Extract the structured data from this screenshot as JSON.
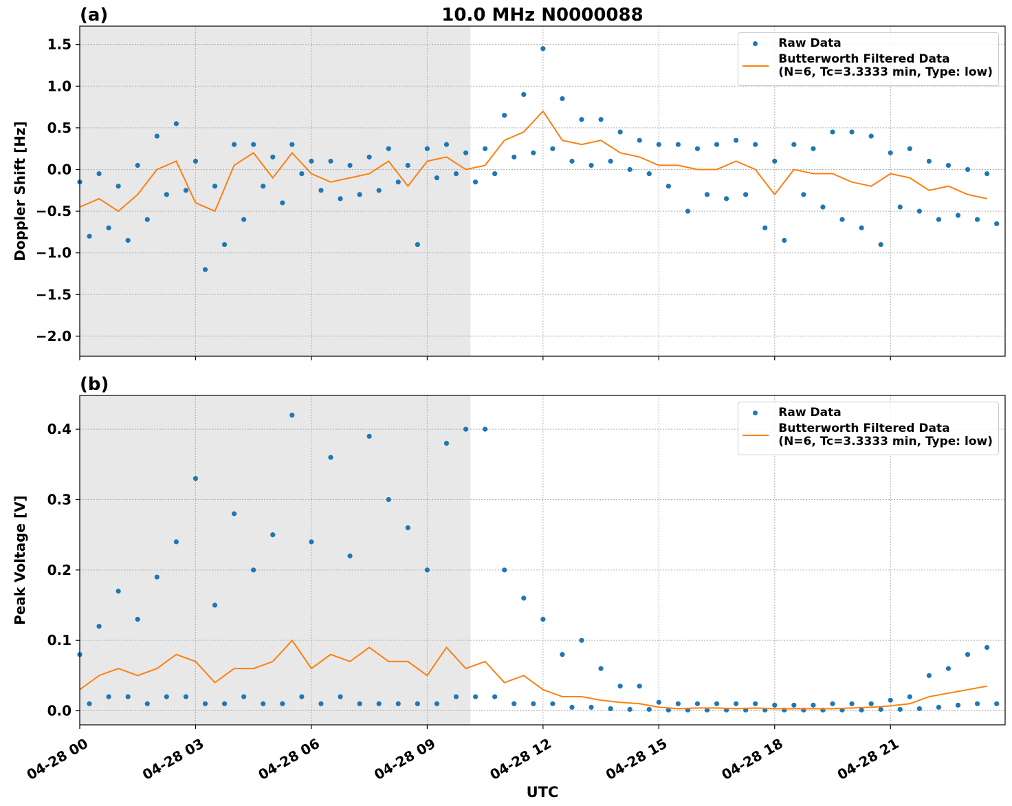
{
  "chart_data": [
    {
      "type": "line",
      "title": "10.0 MHz N0000088",
      "panel_label": "(a)",
      "ylabel": "Doppler Shift [Hz]",
      "xlim": [
        0,
        23.97
      ],
      "ylim": [
        -2.24,
        1.72
      ],
      "grid": true,
      "legend": "upper right",
      "shade_xspan": [
        0,
        10.12
      ],
      "shade_color": "#e8e8e8",
      "xticks": [
        0,
        3,
        6,
        9,
        12,
        15,
        18,
        21
      ],
      "show_xtick_labels": false,
      "yticks": [
        {
          "value": -2.0,
          "label": "−2.0"
        },
        {
          "value": -1.5,
          "label": "−1.5"
        },
        {
          "value": -1.0,
          "label": "−1.0"
        },
        {
          "value": -0.5,
          "label": "−0.5"
        },
        {
          "value": 0,
          "label": "0.0"
        },
        0.5,
        {
          "value": 1.0,
          "label": "1.0"
        },
        1.5
      ],
      "series": [
        {
          "name": "Raw Data",
          "marker": "dot",
          "color": "#1f77b4",
          "x": [
            0,
            0.25,
            0.5,
            0.75,
            1,
            1.25,
            1.5,
            1.75,
            2,
            2.25,
            2.5,
            2.75,
            3,
            3.25,
            3.5,
            3.75,
            4,
            4.25,
            4.5,
            4.75,
            5,
            5.25,
            5.5,
            5.75,
            6,
            6.25,
            6.5,
            6.75,
            7,
            7.25,
            7.5,
            7.75,
            8,
            8.25,
            8.5,
            8.75,
            9,
            9.25,
            9.5,
            9.75,
            10,
            10.25,
            10.5,
            10.75,
            11,
            11.25,
            11.5,
            11.75,
            12,
            12.25,
            12.5,
            12.75,
            13,
            13.25,
            13.5,
            13.75,
            14,
            14.25,
            14.5,
            14.75,
            15,
            15.25,
            15.5,
            15.75,
            16,
            16.25,
            16.5,
            16.75,
            17,
            17.25,
            17.5,
            17.75,
            18,
            18.25,
            18.5,
            18.75,
            19,
            19.25,
            19.5,
            19.75,
            20,
            20.25,
            20.5,
            20.75,
            21,
            21.25,
            21.5,
            21.75,
            22,
            22.25,
            22.5,
            22.75,
            23,
            23.25,
            23.5,
            23.75
          ],
          "values": [
            -0.15,
            -0.8,
            -0.05,
            -0.7,
            -0.2,
            -0.85,
            0.05,
            -0.6,
            0.4,
            -0.3,
            0.55,
            -0.25,
            0.1,
            -1.2,
            -0.2,
            -0.9,
            0.3,
            -0.6,
            0.3,
            -0.2,
            0.15,
            -0.4,
            0.3,
            -0.05,
            0.1,
            -0.25,
            0.1,
            -0.35,
            0.05,
            -0.3,
            0.15,
            -0.25,
            0.25,
            -0.15,
            0.05,
            -0.9,
            0.25,
            -0.1,
            0.3,
            -0.05,
            0.2,
            -0.15,
            0.25,
            -0.05,
            0.65,
            0.15,
            0.9,
            0.2,
            1.45,
            0.25,
            0.85,
            0.1,
            0.6,
            0.05,
            0.6,
            0.1,
            0.45,
            0.0,
            0.35,
            -0.05,
            0.3,
            -0.2,
            0.3,
            -0.5,
            0.25,
            -0.3,
            0.3,
            -0.35,
            0.35,
            -0.3,
            0.3,
            -0.7,
            0.1,
            -0.85,
            0.3,
            -0.3,
            0.25,
            -0.45,
            0.45,
            -0.6,
            0.45,
            -0.7,
            0.4,
            -0.9,
            0.2,
            -0.45,
            0.25,
            -0.5,
            0.1,
            -0.6,
            0.05,
            -0.55,
            0.0,
            -0.6,
            -0.05,
            -0.65
          ]
        },
        {
          "name": "Butterworth Filtered Data\n(N=6, Tc=3.3333 min, Type: low)",
          "marker": "line",
          "color": "#ff7f0e",
          "x": [
            0,
            0.5,
            1,
            1.5,
            2,
            2.5,
            3,
            3.5,
            4,
            4.5,
            5,
            5.5,
            6,
            6.5,
            7,
            7.5,
            8,
            8.5,
            9,
            9.5,
            10,
            10.5,
            11,
            11.5,
            12,
            12.5,
            13,
            13.5,
            14,
            14.5,
            15,
            15.5,
            16,
            16.5,
            17,
            17.5,
            18,
            18.5,
            19,
            19.5,
            20,
            20.5,
            21,
            21.5,
            22,
            22.5,
            23,
            23.5
          ],
          "values": [
            -0.45,
            -0.35,
            -0.5,
            -0.3,
            0.0,
            0.1,
            -0.4,
            -0.5,
            0.05,
            0.2,
            -0.1,
            0.2,
            -0.05,
            -0.15,
            -0.1,
            -0.05,
            0.1,
            -0.2,
            0.1,
            0.15,
            0.0,
            0.05,
            0.35,
            0.45,
            0.7,
            0.35,
            0.3,
            0.35,
            0.2,
            0.15,
            0.05,
            0.05,
            0.0,
            0.0,
            0.1,
            0.0,
            -0.3,
            0.0,
            -0.05,
            -0.05,
            -0.15,
            -0.2,
            -0.05,
            -0.1,
            -0.25,
            -0.2,
            -0.3,
            -0.35
          ]
        }
      ]
    },
    {
      "type": "line",
      "panel_label": "(b)",
      "ylabel": "Peak Voltage [V]",
      "xlabel": "UTC",
      "xlim": [
        0,
        23.97
      ],
      "ylim": [
        -0.02,
        0.448
      ],
      "grid": true,
      "legend": "upper right",
      "shade_xspan": [
        0,
        10.12
      ],
      "shade_color": "#e8e8e8",
      "xticks": [
        {
          "value": 0,
          "label": "04-28 00"
        },
        {
          "value": 3,
          "label": "04-28 03"
        },
        {
          "value": 6,
          "label": "04-28 06"
        },
        {
          "value": 9,
          "label": "04-28 09"
        },
        {
          "value": 12,
          "label": "04-28 12"
        },
        {
          "value": 15,
          "label": "04-28 15"
        },
        {
          "value": 18,
          "label": "04-28 18"
        },
        {
          "value": 21,
          "label": "04-28 21"
        }
      ],
      "show_xtick_labels": true,
      "yticks": [
        {
          "value": 0,
          "label": "0.0"
        },
        0.1,
        0.2,
        0.3,
        0.4
      ],
      "series": [
        {
          "name": "Raw Data",
          "marker": "dot",
          "color": "#1f77b4",
          "x": [
            0,
            0.25,
            0.5,
            0.75,
            1,
            1.25,
            1.5,
            1.75,
            2,
            2.25,
            2.5,
            2.75,
            3,
            3.25,
            3.5,
            3.75,
            4,
            4.25,
            4.5,
            4.75,
            5,
            5.25,
            5.5,
            5.75,
            6,
            6.25,
            6.5,
            6.75,
            7,
            7.25,
            7.5,
            7.75,
            8,
            8.25,
            8.5,
            8.75,
            9,
            9.25,
            9.5,
            9.75,
            10,
            10.25,
            10.5,
            10.75,
            11,
            11.25,
            11.5,
            11.75,
            12,
            12.25,
            12.5,
            12.75,
            13,
            13.25,
            13.5,
            13.75,
            14,
            14.25,
            14.5,
            14.75,
            15,
            15.25,
            15.5,
            15.75,
            16,
            16.25,
            16.5,
            16.75,
            17,
            17.25,
            17.5,
            17.75,
            18,
            18.25,
            18.5,
            18.75,
            19,
            19.25,
            19.5,
            19.75,
            20,
            20.25,
            20.5,
            20.75,
            21,
            21.25,
            21.5,
            21.75,
            22,
            22.25,
            22.5,
            22.75,
            23,
            23.25,
            23.5,
            23.75
          ],
          "values": [
            0.08,
            0.01,
            0.12,
            0.02,
            0.17,
            0.02,
            0.13,
            0.01,
            0.19,
            0.02,
            0.24,
            0.02,
            0.33,
            0.01,
            0.15,
            0.01,
            0.28,
            0.02,
            0.2,
            0.01,
            0.25,
            0.01,
            0.42,
            0.02,
            0.24,
            0.01,
            0.36,
            0.02,
            0.22,
            0.01,
            0.39,
            0.01,
            0.3,
            0.01,
            0.26,
            0.01,
            0.2,
            0.01,
            0.38,
            0.02,
            0.4,
            0.02,
            0.4,
            0.02,
            0.2,
            0.01,
            0.16,
            0.01,
            0.13,
            0.01,
            0.08,
            0.005,
            0.1,
            0.005,
            0.06,
            0.003,
            0.035,
            0.002,
            0.035,
            0.002,
            0.012,
            0.001,
            0.01,
            0.001,
            0.01,
            0.001,
            0.01,
            0.001,
            0.01,
            0.001,
            0.01,
            0.001,
            0.008,
            0.001,
            0.008,
            0.001,
            0.008,
            0.001,
            0.01,
            0.001,
            0.01,
            0.001,
            0.01,
            0.002,
            0.015,
            0.002,
            0.02,
            0.003,
            0.05,
            0.005,
            0.06,
            0.008,
            0.08,
            0.01,
            0.09,
            0.01
          ]
        },
        {
          "name": "Butterworth Filtered Data\n(N=6, Tc=3.3333 min, Type: low)",
          "marker": "line",
          "color": "#ff7f0e",
          "x": [
            0,
            0.5,
            1,
            1.5,
            2,
            2.5,
            3,
            3.5,
            4,
            4.5,
            5,
            5.5,
            6,
            6.5,
            7,
            7.5,
            8,
            8.5,
            9,
            9.5,
            10,
            10.5,
            11,
            11.5,
            12,
            12.5,
            13,
            13.5,
            14,
            14.5,
            15,
            15.5,
            16,
            16.5,
            17,
            17.5,
            18,
            18.5,
            19,
            19.5,
            20,
            20.5,
            21,
            21.5,
            22,
            22.5,
            23,
            23.5
          ],
          "values": [
            0.03,
            0.05,
            0.06,
            0.05,
            0.06,
            0.08,
            0.07,
            0.04,
            0.06,
            0.06,
            0.07,
            0.1,
            0.06,
            0.08,
            0.07,
            0.09,
            0.07,
            0.07,
            0.05,
            0.09,
            0.06,
            0.07,
            0.04,
            0.05,
            0.03,
            0.02,
            0.02,
            0.015,
            0.012,
            0.01,
            0.005,
            0.003,
            0.004,
            0.004,
            0.003,
            0.004,
            0.003,
            0.003,
            0.003,
            0.003,
            0.004,
            0.005,
            0.007,
            0.01,
            0.02,
            0.025,
            0.03,
            0.035
          ]
        }
      ]
    }
  ]
}
